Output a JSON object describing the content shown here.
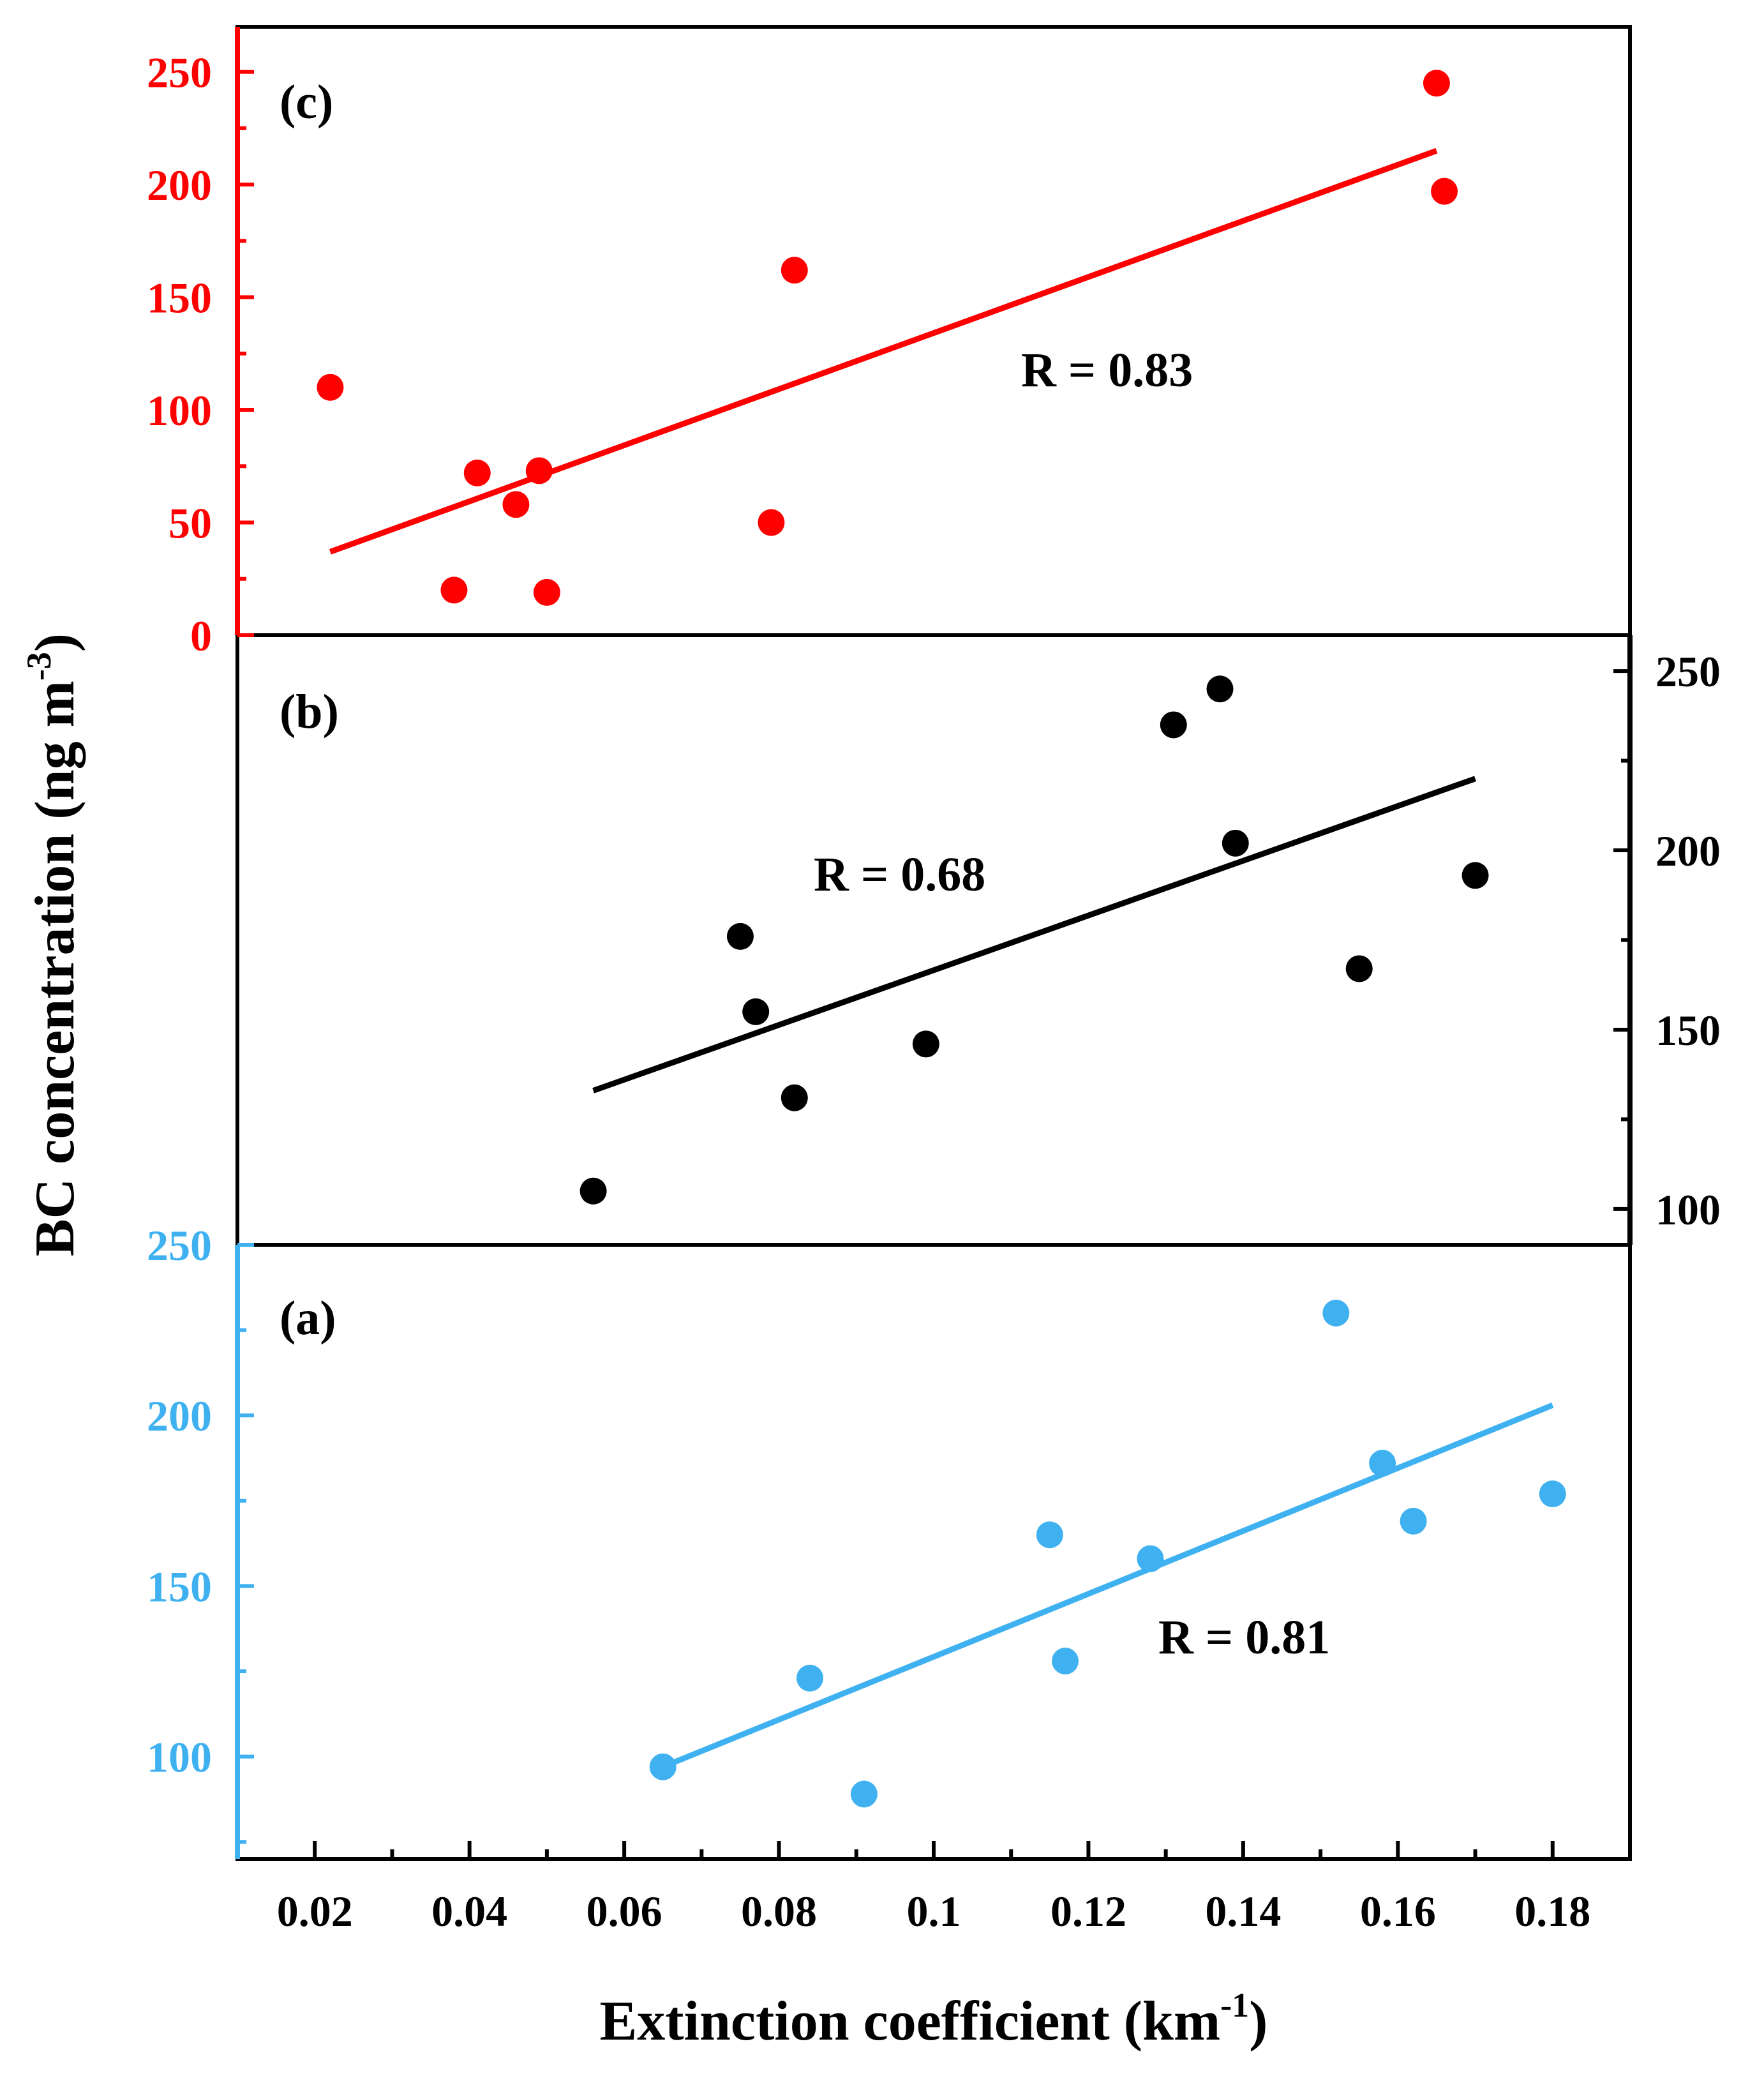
{
  "chart_data": {
    "type": "scatter",
    "x_title": "Extinction coefficient (km",
    "x_title_sup": "-1",
    "x_title_tail": ")",
    "y_title": "BC concentration (ng m",
    "y_title_sup": "-3",
    "y_title_tail": ")",
    "xlim": [
      0.01,
      0.19
    ],
    "x_ticks": [
      0.02,
      0.04,
      0.06,
      0.08,
      0.1,
      0.12,
      0.14,
      0.16,
      0.18
    ],
    "x_tick_labels": [
      "0.02",
      "0.04",
      "0.06",
      "0.08",
      "0.1",
      "0.12",
      "0.14",
      "0.16",
      "0.18"
    ],
    "panels": [
      {
        "id": "c",
        "label": "(c)",
        "color": "#ff0000",
        "axis_side": "left",
        "ylim": [
          0,
          270
        ],
        "y_ticks": [
          0,
          50,
          100,
          150,
          200,
          250
        ],
        "y_tick_labels": [
          "0",
          "50",
          "100",
          "150",
          "200",
          "250"
        ],
        "r_label": "R = 0.83",
        "points": [
          {
            "x": 0.022,
            "y": 110
          },
          {
            "x": 0.038,
            "y": 20
          },
          {
            "x": 0.041,
            "y": 72
          },
          {
            "x": 0.046,
            "y": 58
          },
          {
            "x": 0.049,
            "y": 73
          },
          {
            "x": 0.05,
            "y": 19
          },
          {
            "x": 0.079,
            "y": 50
          },
          {
            "x": 0.082,
            "y": 162
          },
          {
            "x": 0.165,
            "y": 245
          },
          {
            "x": 0.166,
            "y": 197
          }
        ],
        "fit": {
          "x": [
            0.022,
            0.165
          ],
          "y": [
            37,
            215
          ]
        }
      },
      {
        "id": "b",
        "label": "(b)",
        "color": "#000000",
        "axis_side": "right",
        "ylim": [
          90,
          260
        ],
        "y_ticks": [
          100,
          150,
          200,
          250
        ],
        "y_tick_labels": [
          "100",
          "150",
          "200",
          "250"
        ],
        "r_label": "R = 0.68",
        "points": [
          {
            "x": 0.056,
            "y": 105
          },
          {
            "x": 0.075,
            "y": 176
          },
          {
            "x": 0.077,
            "y": 155
          },
          {
            "x": 0.082,
            "y": 131
          },
          {
            "x": 0.099,
            "y": 146
          },
          {
            "x": 0.131,
            "y": 235
          },
          {
            "x": 0.137,
            "y": 245
          },
          {
            "x": 0.139,
            "y": 202
          },
          {
            "x": 0.155,
            "y": 167
          },
          {
            "x": 0.17,
            "y": 193
          }
        ],
        "fit": {
          "x": [
            0.056,
            0.17
          ],
          "y": [
            133,
            220
          ]
        }
      },
      {
        "id": "a",
        "label": "(a)",
        "color": "#3fb1f0",
        "axis_side": "left",
        "ylim": [
          70,
          250
        ],
        "y_ticks": [
          100,
          150,
          200,
          250
        ],
        "y_tick_labels": [
          "100",
          "150",
          "200",
          "250"
        ],
        "r_label": "R = 0.81",
        "points": [
          {
            "x": 0.065,
            "y": 97
          },
          {
            "x": 0.084,
            "y": 123
          },
          {
            "x": 0.091,
            "y": 89
          },
          {
            "x": 0.115,
            "y": 165
          },
          {
            "x": 0.117,
            "y": 128
          },
          {
            "x": 0.128,
            "y": 158
          },
          {
            "x": 0.152,
            "y": 230
          },
          {
            "x": 0.158,
            "y": 186
          },
          {
            "x": 0.162,
            "y": 169
          },
          {
            "x": 0.18,
            "y": 177
          }
        ],
        "fit": {
          "x": [
            0.065,
            0.18
          ],
          "y": [
            97,
            203
          ]
        }
      }
    ]
  }
}
